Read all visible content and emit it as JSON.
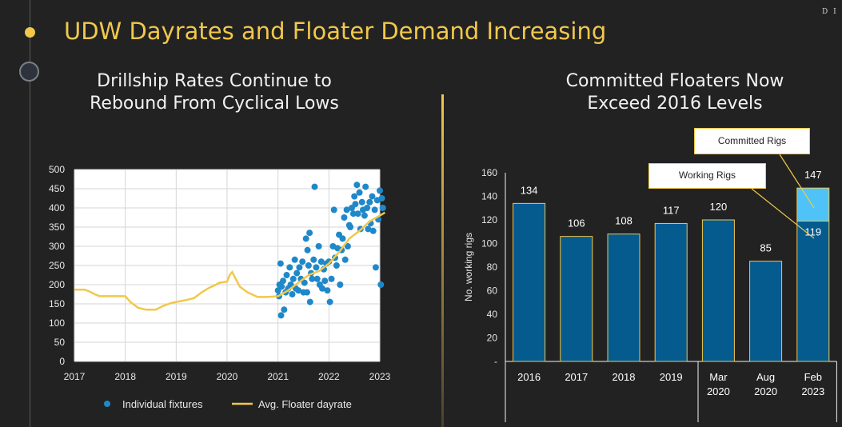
{
  "header": {
    "title": "UDW Dayrates and Floater Demand Increasing",
    "logo_text": "D I",
    "accent_color": "#f1c84c"
  },
  "left_panel": {
    "subtitle_line1": "Drillship Rates Continue to",
    "subtitle_line2": "Rebound From Cyclical Lows"
  },
  "right_panel": {
    "subtitle_line1": "Committed Floaters Now",
    "subtitle_line2": "Exceed 2016 Levels",
    "callout_committed": "Committed Rigs",
    "callout_working": "Working Rigs"
  },
  "chart_data": [
    {
      "type": "scatter",
      "ylim": [
        0,
        500
      ],
      "xlim": [
        2017,
        2023
      ],
      "yticks": [
        "0",
        "50",
        "100",
        "150",
        "200",
        "250",
        "300",
        "350",
        "400",
        "450",
        "500"
      ],
      "xticks": [
        "2017",
        "2018",
        "2019",
        "2020",
        "2021",
        "2022",
        "2023"
      ],
      "grid": true,
      "legend_position": "bottom",
      "series": [
        {
          "name": "Individual fixtures",
          "color": "#1f88c9",
          "points": [
            [
              2021.0,
              185
            ],
            [
              2021.02,
              170
            ],
            [
              2021.03,
              200
            ],
            [
              2021.05,
              255
            ],
            [
              2021.06,
              120
            ],
            [
              2021.07,
              195
            ],
            [
              2021.1,
              210
            ],
            [
              2021.12,
              135
            ],
            [
              2021.15,
              180
            ],
            [
              2021.17,
              225
            ],
            [
              2021.2,
              190
            ],
            [
              2021.23,
              245
            ],
            [
              2021.25,
              200
            ],
            [
              2021.28,
              175
            ],
            [
              2021.3,
              215
            ],
            [
              2021.33,
              265
            ],
            [
              2021.35,
              190
            ],
            [
              2021.37,
              230
            ],
            [
              2021.4,
              185
            ],
            [
              2021.42,
              245
            ],
            [
              2021.45,
              215
            ],
            [
              2021.48,
              260
            ],
            [
              2021.5,
              180
            ],
            [
              2021.52,
              205
            ],
            [
              2021.55,
              320
            ],
            [
              2021.57,
              180
            ],
            [
              2021.58,
              290
            ],
            [
              2021.6,
              250
            ],
            [
              2021.62,
              335
            ],
            [
              2021.63,
              155
            ],
            [
              2021.65,
              230
            ],
            [
              2021.67,
              215
            ],
            [
              2021.7,
              265
            ],
            [
              2021.72,
              455
            ],
            [
              2021.75,
              245
            ],
            [
              2021.77,
              215
            ],
            [
              2021.8,
              300
            ],
            [
              2021.82,
              200
            ],
            [
              2021.85,
              260
            ],
            [
              2021.87,
              190
            ],
            [
              2021.9,
              240
            ],
            [
              2021.92,
              210
            ],
            [
              2021.95,
              255
            ],
            [
              2021.97,
              185
            ],
            [
              2022.0,
              260
            ],
            [
              2022.02,
              155
            ],
            [
              2022.05,
              215
            ],
            [
              2022.08,
              300
            ],
            [
              2022.1,
              395
            ],
            [
              2022.12,
              270
            ],
            [
              2022.15,
              250
            ],
            [
              2022.17,
              295
            ],
            [
              2022.2,
              330
            ],
            [
              2022.22,
              200
            ],
            [
              2022.25,
              290
            ],
            [
              2022.27,
              320
            ],
            [
              2022.3,
              375
            ],
            [
              2022.32,
              265
            ],
            [
              2022.35,
              395
            ],
            [
              2022.37,
              300
            ],
            [
              2022.4,
              355
            ],
            [
              2022.42,
              350
            ],
            [
              2022.45,
              400
            ],
            [
              2022.48,
              385
            ],
            [
              2022.5,
              430
            ],
            [
              2022.52,
              410
            ],
            [
              2022.55,
              460
            ],
            [
              2022.57,
              385
            ],
            [
              2022.6,
              440
            ],
            [
              2022.62,
              345
            ],
            [
              2022.65,
              415
            ],
            [
              2022.67,
              395
            ],
            [
              2022.7,
              380
            ],
            [
              2022.72,
              455
            ],
            [
              2022.75,
              400
            ],
            [
              2022.77,
              345
            ],
            [
              2022.8,
              415
            ],
            [
              2022.82,
              360
            ],
            [
              2022.85,
              430
            ],
            [
              2022.87,
              340
            ],
            [
              2022.9,
              395
            ],
            [
              2022.92,
              245
            ],
            [
              2022.95,
              420
            ],
            [
              2022.97,
              370
            ],
            [
              2023.0,
              445
            ],
            [
              2023.02,
              200
            ],
            [
              2023.04,
              425
            ],
            [
              2023.06,
              400
            ]
          ]
        },
        {
          "name": "Avg. Floater dayrate",
          "color": "#f1c84c",
          "points": [
            [
              2017.0,
              187
            ],
            [
              2017.2,
              187
            ],
            [
              2017.3,
              182
            ],
            [
              2017.4,
              175
            ],
            [
              2017.5,
              170
            ],
            [
              2017.8,
              170
            ],
            [
              2018.0,
              170
            ],
            [
              2018.1,
              155
            ],
            [
              2018.25,
              140
            ],
            [
              2018.4,
              135
            ],
            [
              2018.6,
              135
            ],
            [
              2018.75,
              145
            ],
            [
              2018.9,
              152
            ],
            [
              2019.0,
              155
            ],
            [
              2019.2,
              160
            ],
            [
              2019.35,
              165
            ],
            [
              2019.5,
              180
            ],
            [
              2019.65,
              192
            ],
            [
              2019.75,
              198
            ],
            [
              2019.85,
              205
            ],
            [
              2020.0,
              208
            ],
            [
              2020.05,
              225
            ],
            [
              2020.1,
              233
            ],
            [
              2020.15,
              220
            ],
            [
              2020.25,
              195
            ],
            [
              2020.4,
              180
            ],
            [
              2020.6,
              168
            ],
            [
              2020.8,
              168
            ],
            [
              2021.0,
              170
            ],
            [
              2021.2,
              185
            ],
            [
              2021.4,
              205
            ],
            [
              2021.6,
              225
            ],
            [
              2021.8,
              235
            ],
            [
              2022.0,
              255
            ],
            [
              2022.2,
              285
            ],
            [
              2022.4,
              320
            ],
            [
              2022.6,
              340
            ],
            [
              2022.8,
              365
            ],
            [
              2023.0,
              380
            ],
            [
              2023.1,
              388
            ]
          ]
        }
      ]
    },
    {
      "type": "bar",
      "ylabel": "No. working rigs",
      "ylim": [
        0,
        160
      ],
      "yticks": [
        "-",
        "20",
        "40",
        "60",
        "80",
        "100",
        "120",
        "140",
        "160"
      ],
      "categories": [
        "2016",
        "2017",
        "2018",
        "2019",
        "Mar 2020",
        "Aug 2020",
        "Feb 2023"
      ],
      "series": [
        {
          "name": "Working Rigs",
          "color": "#055a8e",
          "values": [
            134,
            106,
            108,
            117,
            120,
            85,
            119
          ]
        },
        {
          "name": "Committed Rigs",
          "color": "#4fc3f7",
          "values": [
            0,
            0,
            0,
            0,
            0,
            0,
            28
          ]
        }
      ],
      "data_labels": [
        "134",
        "106",
        "108",
        "117",
        "120",
        "85",
        "119"
      ],
      "total_label_last": "147"
    }
  ]
}
